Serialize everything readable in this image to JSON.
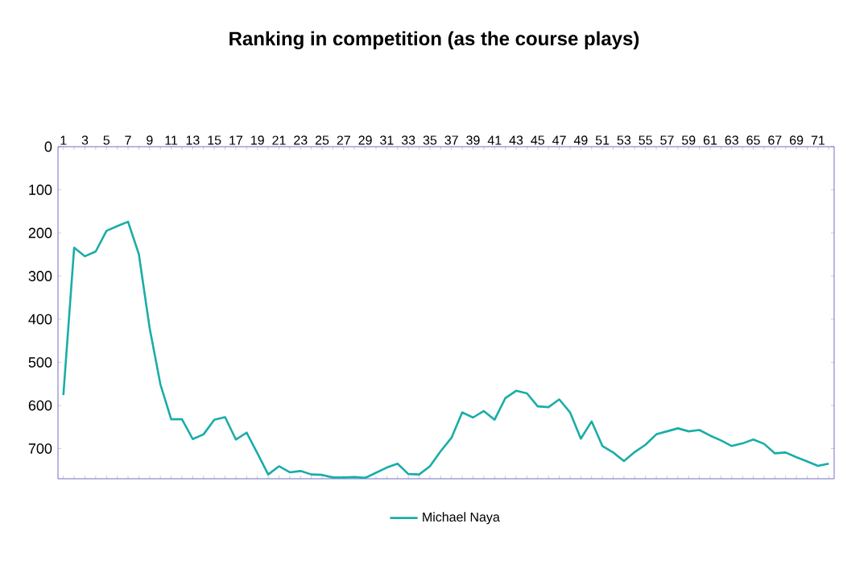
{
  "chart_data": {
    "type": "line",
    "title": "Ranking in competition (as the course plays)",
    "categories": [
      "1",
      null,
      "3",
      null,
      "5",
      null,
      "7",
      null,
      "9",
      null,
      "11",
      null,
      "13",
      null,
      "15",
      null,
      "17",
      null,
      "19",
      null,
      "21",
      null,
      "23",
      null,
      "25",
      null,
      "27",
      null,
      "29",
      null,
      "31",
      null,
      "33",
      null,
      "35",
      null,
      "37",
      null,
      "39",
      null,
      "41",
      null,
      "43",
      null,
      "45",
      null,
      "47",
      null,
      "49",
      null,
      "51",
      null,
      "53",
      null,
      "55",
      null,
      "57",
      null,
      "59",
      null,
      "61",
      null,
      "63",
      null,
      "65",
      null,
      "67",
      null,
      "69",
      null,
      "71",
      null
    ],
    "series": [
      {
        "name": "Michael Naya",
        "color": "#1aada8",
        "values": [
          576,
          234,
          254,
          243,
          195,
          184,
          174,
          249,
          420,
          551,
          632,
          632,
          678,
          667,
          633,
          627,
          679,
          663,
          711,
          760,
          741,
          755,
          752,
          760,
          761,
          767,
          767,
          766,
          768,
          756,
          744,
          735,
          759,
          760,
          741,
          706,
          675,
          616,
          628,
          613,
          633,
          583,
          566,
          572,
          602,
          604,
          586,
          616,
          677,
          637,
          694,
          709,
          729,
          708,
          691,
          667,
          660,
          653,
          660,
          657,
          670,
          681,
          694,
          688,
          679,
          689,
          711,
          709,
          720,
          730,
          740,
          735
        ]
      }
    ],
    "ylim": [
      770,
      0
    ],
    "yticks": [
      0,
      100,
      200,
      300,
      400,
      500,
      600,
      700
    ],
    "legend": "bottom",
    "grid": false,
    "marker": "none",
    "line_style": "solid"
  }
}
